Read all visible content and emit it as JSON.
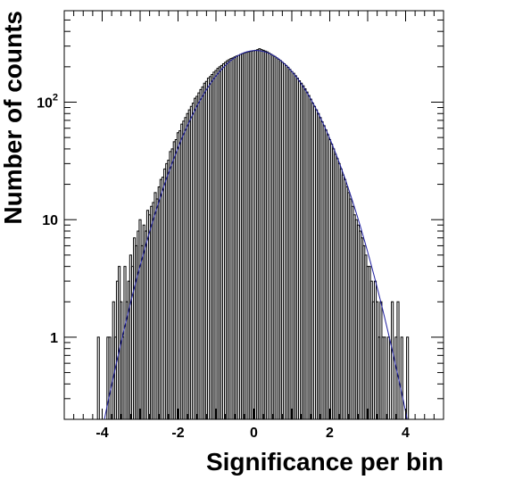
{
  "chart_data": {
    "type": "histogram",
    "title": "",
    "xlabel": "Significance per bin",
    "ylabel": "Number of counts",
    "xlim": [
      -5,
      5
    ],
    "ylim": [
      0.2,
      600
    ],
    "yscale": "log",
    "grid": false,
    "legend": "none",
    "x_ticks": [
      {
        "value": -4,
        "label": "-4"
      },
      {
        "value": -2,
        "label": "-2"
      },
      {
        "value": 0,
        "label": "0"
      },
      {
        "value": 2,
        "label": "2"
      },
      {
        "value": 4,
        "label": "4"
      }
    ],
    "y_ticks": [
      {
        "value": 1,
        "base": "1",
        "exp": ""
      },
      {
        "value": 10,
        "base": "10",
        "exp": ""
      },
      {
        "value": 100,
        "base": "10",
        "exp": "2"
      }
    ],
    "histogram": {
      "name": "",
      "color": "#000000",
      "bin_width": 0.05,
      "bins": [
        {
          "x": -4.1,
          "count": 1
        },
        {
          "x": -3.85,
          "count": 1
        },
        {
          "x": -3.8,
          "count": 1
        },
        {
          "x": -3.7,
          "count": 2
        },
        {
          "x": -3.65,
          "count": 1
        },
        {
          "x": -3.6,
          "count": 3
        },
        {
          "x": -3.55,
          "count": 4
        },
        {
          "x": -3.5,
          "count": 2
        },
        {
          "x": -3.45,
          "count": 1
        },
        {
          "x": -3.4,
          "count": 4
        },
        {
          "x": -3.35,
          "count": 2
        },
        {
          "x": -3.3,
          "count": 3
        },
        {
          "x": -3.25,
          "count": 5
        },
        {
          "x": -3.2,
          "count": 4
        },
        {
          "x": -3.15,
          "count": 7
        },
        {
          "x": -3.1,
          "count": 6
        },
        {
          "x": -3.05,
          "count": 8
        },
        {
          "x": -3.0,
          "count": 10
        },
        {
          "x": -2.95,
          "count": 6
        },
        {
          "x": -2.9,
          "count": 9
        },
        {
          "x": -2.85,
          "count": 8
        },
        {
          "x": -2.8,
          "count": 12
        },
        {
          "x": -2.75,
          "count": 11
        },
        {
          "x": -2.7,
          "count": 13
        },
        {
          "x": -2.65,
          "count": 14
        },
        {
          "x": -2.6,
          "count": 17
        },
        {
          "x": -2.55,
          "count": 15
        },
        {
          "x": -2.5,
          "count": 19
        },
        {
          "x": -2.45,
          "count": 22
        },
        {
          "x": -2.4,
          "count": 23
        },
        {
          "x": -2.35,
          "count": 27
        },
        {
          "x": -2.3,
          "count": 30
        },
        {
          "x": -2.25,
          "count": 32
        },
        {
          "x": -2.2,
          "count": 38
        },
        {
          "x": -2.15,
          "count": 40
        },
        {
          "x": -2.1,
          "count": 46
        },
        {
          "x": -2.05,
          "count": 48
        },
        {
          "x": -2.0,
          "count": 55
        },
        {
          "x": -1.95,
          "count": 57
        },
        {
          "x": -1.9,
          "count": 65
        },
        {
          "x": -1.85,
          "count": 69
        },
        {
          "x": -1.8,
          "count": 74
        },
        {
          "x": -1.75,
          "count": 80
        },
        {
          "x": -1.7,
          "count": 86
        },
        {
          "x": -1.65,
          "count": 92
        },
        {
          "x": -1.6,
          "count": 98
        },
        {
          "x": -1.55,
          "count": 108
        },
        {
          "x": -1.5,
          "count": 112
        },
        {
          "x": -1.45,
          "count": 120
        },
        {
          "x": -1.4,
          "count": 128
        },
        {
          "x": -1.35,
          "count": 135
        },
        {
          "x": -1.3,
          "count": 145
        },
        {
          "x": -1.25,
          "count": 150
        },
        {
          "x": -1.2,
          "count": 160
        },
        {
          "x": -1.15,
          "count": 165
        },
        {
          "x": -1.1,
          "count": 172
        },
        {
          "x": -1.05,
          "count": 180
        },
        {
          "x": -1.0,
          "count": 186
        },
        {
          "x": -0.95,
          "count": 194
        },
        {
          "x": -0.9,
          "count": 200
        },
        {
          "x": -0.85,
          "count": 205
        },
        {
          "x": -0.8,
          "count": 212
        },
        {
          "x": -0.75,
          "count": 218
        },
        {
          "x": -0.7,
          "count": 225
        },
        {
          "x": -0.65,
          "count": 230
        },
        {
          "x": -0.6,
          "count": 235
        },
        {
          "x": -0.55,
          "count": 238
        },
        {
          "x": -0.5,
          "count": 243
        },
        {
          "x": -0.45,
          "count": 247
        },
        {
          "x": -0.4,
          "count": 250
        },
        {
          "x": -0.35,
          "count": 255
        },
        {
          "x": -0.3,
          "count": 258
        },
        {
          "x": -0.25,
          "count": 262
        },
        {
          "x": -0.2,
          "count": 265
        },
        {
          "x": -0.15,
          "count": 268
        },
        {
          "x": -0.1,
          "count": 270
        },
        {
          "x": -0.05,
          "count": 272
        },
        {
          "x": 0.0,
          "count": 274
        },
        {
          "x": 0.05,
          "count": 276
        },
        {
          "x": 0.1,
          "count": 280
        },
        {
          "x": 0.15,
          "count": 285
        },
        {
          "x": 0.2,
          "count": 280
        },
        {
          "x": 0.25,
          "count": 276
        },
        {
          "x": 0.3,
          "count": 272
        },
        {
          "x": 0.35,
          "count": 268
        },
        {
          "x": 0.4,
          "count": 262
        },
        {
          "x": 0.45,
          "count": 256
        },
        {
          "x": 0.5,
          "count": 250
        },
        {
          "x": 0.55,
          "count": 245
        },
        {
          "x": 0.6,
          "count": 238
        },
        {
          "x": 0.65,
          "count": 232
        },
        {
          "x": 0.7,
          "count": 226
        },
        {
          "x": 0.75,
          "count": 218
        },
        {
          "x": 0.8,
          "count": 212
        },
        {
          "x": 0.85,
          "count": 205
        },
        {
          "x": 0.9,
          "count": 198
        },
        {
          "x": 0.95,
          "count": 190
        },
        {
          "x": 1.0,
          "count": 182
        },
        {
          "x": 1.05,
          "count": 176
        },
        {
          "x": 1.1,
          "count": 168
        },
        {
          "x": 1.15,
          "count": 160
        },
        {
          "x": 1.2,
          "count": 152
        },
        {
          "x": 1.25,
          "count": 145
        },
        {
          "x": 1.3,
          "count": 138
        },
        {
          "x": 1.35,
          "count": 130
        },
        {
          "x": 1.4,
          "count": 122
        },
        {
          "x": 1.45,
          "count": 114
        },
        {
          "x": 1.5,
          "count": 106
        },
        {
          "x": 1.55,
          "count": 98
        },
        {
          "x": 1.6,
          "count": 92
        },
        {
          "x": 1.65,
          "count": 86
        },
        {
          "x": 1.7,
          "count": 80
        },
        {
          "x": 1.75,
          "count": 74
        },
        {
          "x": 1.8,
          "count": 68
        },
        {
          "x": 1.85,
          "count": 63
        },
        {
          "x": 1.9,
          "count": 58
        },
        {
          "x": 1.95,
          "count": 53
        },
        {
          "x": 2.0,
          "count": 48
        },
        {
          "x": 2.05,
          "count": 44
        },
        {
          "x": 2.1,
          "count": 40
        },
        {
          "x": 2.15,
          "count": 36
        },
        {
          "x": 2.2,
          "count": 33
        },
        {
          "x": 2.25,
          "count": 30
        },
        {
          "x": 2.3,
          "count": 27
        },
        {
          "x": 2.35,
          "count": 24
        },
        {
          "x": 2.4,
          "count": 22
        },
        {
          "x": 2.45,
          "count": 19
        },
        {
          "x": 2.5,
          "count": 17
        },
        {
          "x": 2.55,
          "count": 15
        },
        {
          "x": 2.6,
          "count": 13
        },
        {
          "x": 2.65,
          "count": 11
        },
        {
          "x": 2.7,
          "count": 10
        },
        {
          "x": 2.75,
          "count": 9
        },
        {
          "x": 2.8,
          "count": 8
        },
        {
          "x": 2.85,
          "count": 7
        },
        {
          "x": 2.9,
          "count": 6
        },
        {
          "x": 2.95,
          "count": 5
        },
        {
          "x": 3.0,
          "count": 4
        },
        {
          "x": 3.05,
          "count": 4
        },
        {
          "x": 3.1,
          "count": 3
        },
        {
          "x": 3.15,
          "count": 2
        },
        {
          "x": 3.2,
          "count": 3
        },
        {
          "x": 3.25,
          "count": 2
        },
        {
          "x": 3.3,
          "count": 1
        },
        {
          "x": 3.35,
          "count": 2
        },
        {
          "x": 3.4,
          "count": 1
        },
        {
          "x": 3.45,
          "count": 1
        },
        {
          "x": 3.55,
          "count": 1
        },
        {
          "x": 3.65,
          "count": 2
        },
        {
          "x": 3.75,
          "count": 1
        },
        {
          "x": 3.8,
          "count": 2
        },
        {
          "x": 3.9,
          "count": 1
        },
        {
          "x": 4.05,
          "count": 1
        }
      ]
    },
    "fit": {
      "name": "",
      "color": "#1f1fa0",
      "model": "gaussian",
      "amplitude": 275,
      "mean": 0.05,
      "sigma": 1.05
    }
  }
}
